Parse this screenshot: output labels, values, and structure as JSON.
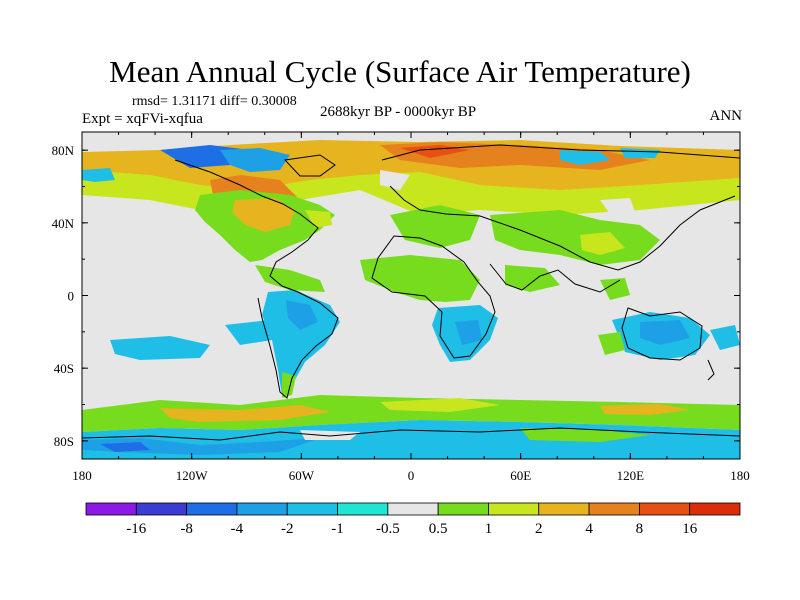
{
  "title": "Mean Annual Cycle (Surface Air Temperature)",
  "stats": "rmsd= 1.31171 diff= 0.30008",
  "experiment": "Expt = xqFVi-xqfua",
  "period": "2688kyr BP - 0000kyr BP",
  "season": "ANN",
  "lat_labels": [
    "80N",
    "40N",
    "0",
    "40S",
    "80S"
  ],
  "lon_labels": [
    "180",
    "120W",
    "60W",
    "0",
    "60E",
    "120E",
    "180"
  ],
  "colorbar": {
    "boundary_labels": [
      "-16",
      "-8",
      "-4",
      "-2",
      "-1",
      "-0.5",
      "0.5",
      "1",
      "2",
      "4",
      "8",
      "16"
    ],
    "colors": [
      "#8b1ae6",
      "#3c3cd2",
      "#1e6ee6",
      "#1ea0e6",
      "#1ebee6",
      "#1ee6d2",
      "#e6e6e6",
      "#78dc1e",
      "#c8e61e",
      "#e6b41e",
      "#e6821e",
      "#e65014",
      "#dc2d0a"
    ]
  },
  "palette": {
    "background": "#e6e6e6",
    "green": "#78dc1e",
    "cyan": "#1ebee6",
    "lightblue": "#1ea0e6",
    "blue": "#1e6ee6",
    "lime": "#c8e61e",
    "orange": "#e6b41e",
    "darkorange": "#e6821e",
    "red": "#e65014"
  }
}
